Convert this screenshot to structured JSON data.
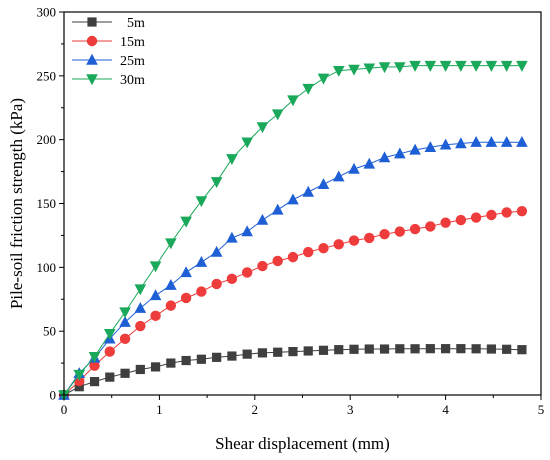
{
  "chart_data": {
    "type": "line",
    "xlabel": "Shear displacement (mm)",
    "ylabel": "Pile-soil friction strength (kPa)",
    "xlim": [
      0,
      5
    ],
    "ylim": [
      0,
      300
    ],
    "xticks": [
      0,
      1,
      2,
      3,
      4,
      5
    ],
    "yticks": [
      0,
      50,
      100,
      150,
      200,
      250,
      300
    ],
    "grid": false,
    "legend": "top-left",
    "series": [
      {
        "name": "5m",
        "color": "#3f3f3f",
        "marker": "square",
        "x": [
          0,
          0.16,
          0.32,
          0.48,
          0.64,
          0.8,
          0.96,
          1.12,
          1.28,
          1.44,
          1.6,
          1.76,
          1.92,
          2.08,
          2.24,
          2.4,
          2.56,
          2.72,
          2.88,
          3.04,
          3.2,
          3.36,
          3.52,
          3.68,
          3.84,
          4.0,
          4.16,
          4.32,
          4.48,
          4.64,
          4.8
        ],
        "y": [
          0,
          6.5,
          10.5,
          14,
          17,
          20,
          22,
          25,
          27,
          28,
          29.5,
          30.5,
          32,
          33,
          33.5,
          34,
          34.5,
          35,
          35.5,
          35.8,
          36,
          36,
          36.2,
          36.2,
          36.3,
          36.3,
          36.3,
          36.2,
          36,
          35.8,
          35.5
        ]
      },
      {
        "name": "15m",
        "color": "#ee3b3b",
        "marker": "circle",
        "x": [
          0,
          0.16,
          0.32,
          0.48,
          0.64,
          0.8,
          0.96,
          1.12,
          1.28,
          1.44,
          1.6,
          1.76,
          1.92,
          2.08,
          2.24,
          2.4,
          2.56,
          2.72,
          2.88,
          3.04,
          3.2,
          3.36,
          3.52,
          3.68,
          3.84,
          4.0,
          4.16,
          4.32,
          4.48,
          4.64,
          4.8
        ],
        "y": [
          0,
          11,
          23,
          34,
          44,
          54,
          62,
          70,
          76,
          81,
          87,
          91,
          96,
          101,
          105,
          108,
          112,
          115,
          118,
          121,
          123,
          126,
          128,
          130,
          132,
          135,
          137,
          139,
          141,
          143,
          144
        ]
      },
      {
        "name": "25m",
        "color": "#1f5fd6",
        "marker": "triangle-up",
        "x": [
          0,
          0.16,
          0.32,
          0.48,
          0.64,
          0.8,
          0.96,
          1.12,
          1.28,
          1.44,
          1.6,
          1.76,
          1.92,
          2.08,
          2.24,
          2.4,
          2.56,
          2.72,
          2.88,
          3.04,
          3.2,
          3.36,
          3.52,
          3.68,
          3.84,
          4.0,
          4.16,
          4.32,
          4.48,
          4.64,
          4.8
        ],
        "y": [
          0,
          17,
          29,
          44,
          57,
          68,
          78,
          86,
          96,
          104,
          112,
          123,
          128,
          137,
          145,
          153,
          159,
          165,
          171,
          177,
          181,
          186,
          189,
          192,
          194,
          196,
          197,
          198,
          198,
          198,
          198
        ]
      },
      {
        "name": "30m",
        "color": "#1aa85a",
        "marker": "triangle-down",
        "x": [
          0,
          0.16,
          0.32,
          0.48,
          0.64,
          0.8,
          0.96,
          1.12,
          1.28,
          1.44,
          1.6,
          1.76,
          1.92,
          2.08,
          2.24,
          2.4,
          2.56,
          2.72,
          2.88,
          3.04,
          3.2,
          3.36,
          3.52,
          3.68,
          3.84,
          4.0,
          4.16,
          4.32,
          4.48,
          4.64,
          4.8
        ],
        "y": [
          0,
          16,
          30,
          48,
          65,
          83,
          101,
          119,
          136,
          152,
          167,
          185,
          198,
          210,
          220,
          231,
          240,
          248,
          254,
          255,
          256,
          257,
          257,
          258,
          258,
          258,
          258,
          258,
          258,
          258,
          258
        ]
      }
    ]
  }
}
